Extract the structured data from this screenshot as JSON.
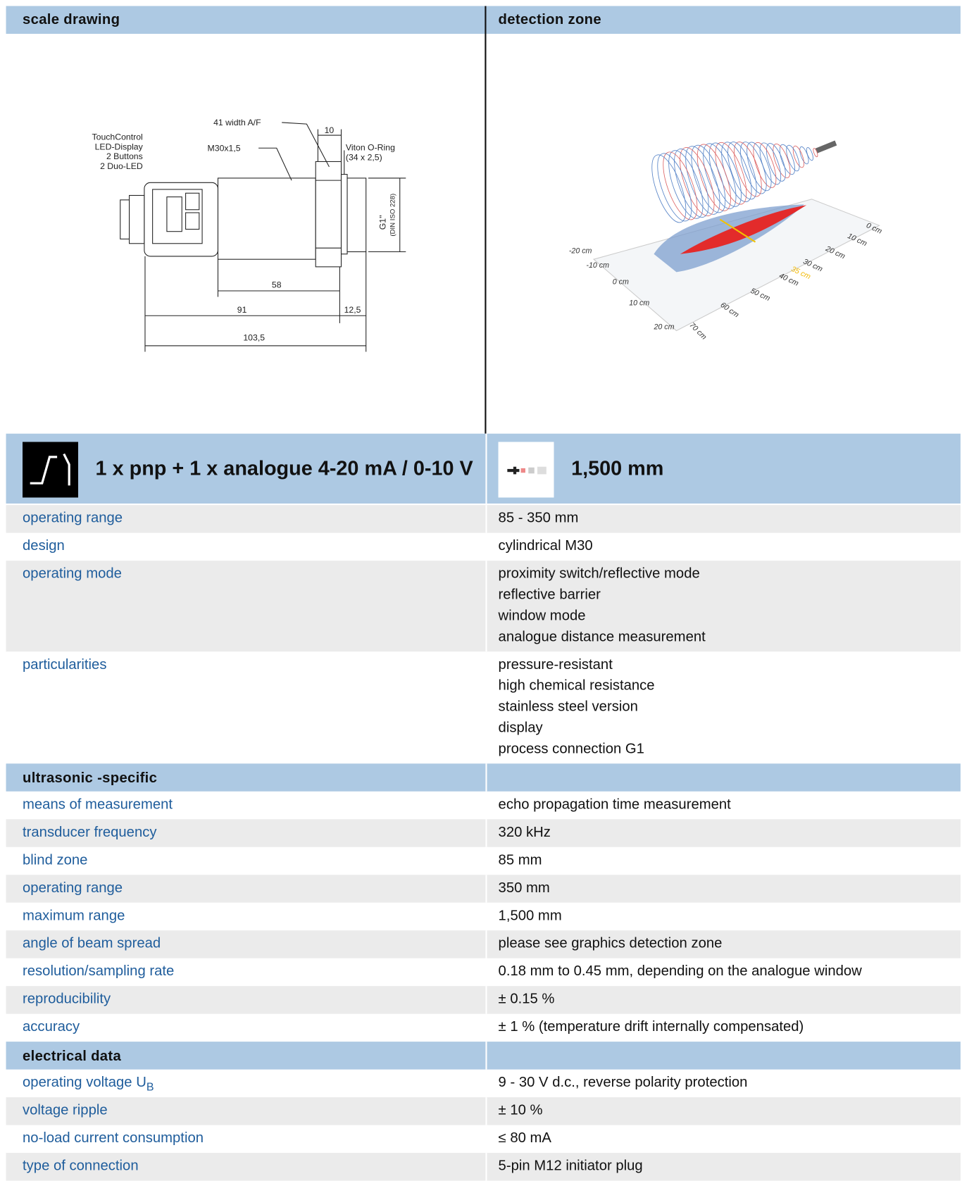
{
  "header": {
    "left": "scale drawing",
    "right": "detection zone"
  },
  "scale_drawing": {
    "callouts": [
      "TouchControl",
      "LED-Display",
      "2 Buttons",
      "2 Duo-LED",
      "41 width A/F",
      "M30x1,5",
      "Viton O-Ring",
      "(34 x 2,5)",
      "G1\"",
      "(DIN ISO 228)"
    ],
    "dimensions": [
      "10",
      "58",
      "91",
      "12,5",
      "103,5"
    ]
  },
  "detection_zone": {
    "lateral_axis": [
      "-20 cm",
      "-10 cm",
      "0 cm",
      "10 cm",
      "20 cm"
    ],
    "distance_axis": [
      "0 cm",
      "10 cm",
      "20 cm",
      "30 cm",
      "35 cm",
      "40 cm",
      "50 cm",
      "60 cm",
      "70 cm"
    ]
  },
  "product": {
    "output": "1 x pnp + 1 x analogue 4-20 mA / 0-10 V",
    "max_range": "1,500 mm"
  },
  "sections": [
    {
      "rows": [
        {
          "label": "operating range",
          "value": [
            "85 - 350 mm"
          ]
        },
        {
          "label": "design",
          "value": [
            "cylindrical M30"
          ]
        },
        {
          "label": "operating mode",
          "value": [
            "proximity switch/reflective mode",
            "reflective barrier",
            "window mode",
            "analogue distance measurement"
          ]
        },
        {
          "label": "particularities",
          "value": [
            "pressure-resistant",
            "high chemical resistance",
            "stainless steel version",
            "display",
            "process connection G1"
          ]
        }
      ]
    },
    {
      "title": "ultrasonic -specific",
      "rows": [
        {
          "label": "means of measurement",
          "value": [
            "echo propagation time measurement"
          ]
        },
        {
          "label": "transducer frequency",
          "value": [
            "320 kHz"
          ]
        },
        {
          "label": "blind zone",
          "value": [
            "85 mm"
          ]
        },
        {
          "label": "operating range",
          "value": [
            "350 mm"
          ]
        },
        {
          "label": "maximum range",
          "value": [
            "1,500 mm"
          ]
        },
        {
          "label": "angle of beam spread",
          "value": [
            "please see graphics detection zone"
          ]
        },
        {
          "label": "resolution/sampling rate",
          "value": [
            "0.18 mm to 0.45 mm, depending on the analogue window"
          ]
        },
        {
          "label": "reproducibility",
          "value": [
            "± 0.15 %"
          ]
        },
        {
          "label": "accuracy",
          "value": [
            "± 1 % (temperature drift internally compensated)"
          ]
        }
      ]
    },
    {
      "title": "electrical data",
      "rows": [
        {
          "label": "operating voltage U",
          "label_sub": "B",
          "value": [
            "9 - 30 V d.c., reverse polarity protection"
          ]
        },
        {
          "label": "voltage ripple",
          "value": [
            "± 10 %"
          ]
        },
        {
          "label": "no-load current consumption",
          "value": [
            "≤ 80 mA"
          ]
        },
        {
          "label": "type of connection",
          "value": [
            "5-pin M12 initiator plug"
          ]
        }
      ]
    }
  ]
}
